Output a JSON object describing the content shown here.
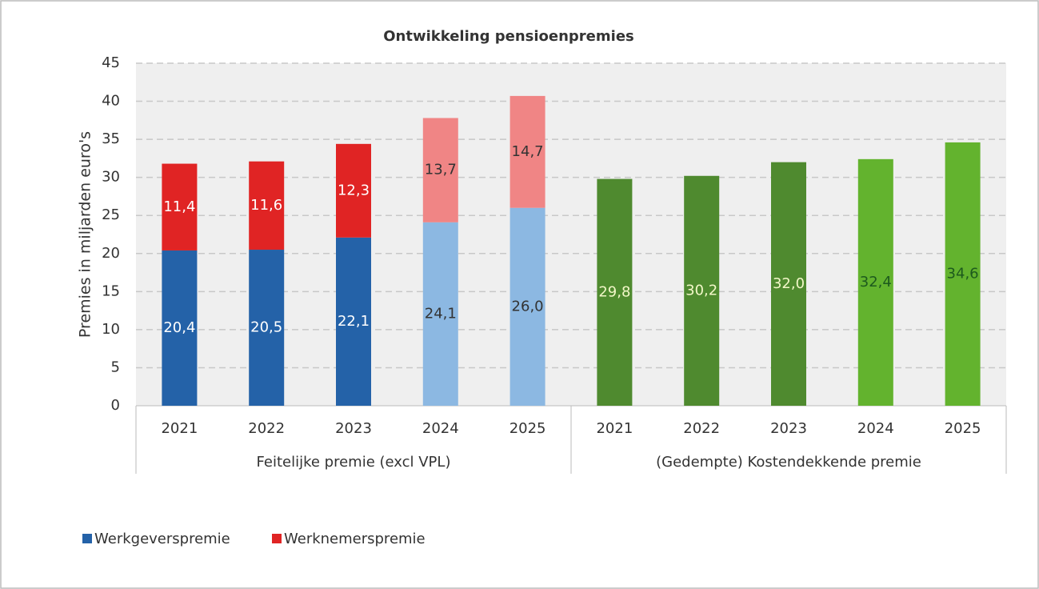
{
  "chart_data": {
    "type": "stacked-bar",
    "title": "Ontwikkeling pensioenpremies",
    "y_label": "Premies in miljarden euro's",
    "categories": [
      "2021",
      "2022",
      "2023",
      "2024",
      "2025",
      "2021",
      "2022",
      "2023",
      "2024",
      "2025"
    ],
    "groups": [
      {
        "label": "Feitelijke premie (excl VPL)",
        "size": 5
      },
      {
        "label": "(Gedempte) Kostendekkende premie",
        "size": 5
      }
    ],
    "series": [
      {
        "name": "Werkgeverspremie",
        "color": "#2462a8",
        "colors": [
          "#2462a8",
          "#2462a8",
          "#2462a8",
          "#8cb8e2",
          "#8cb8e2",
          null,
          null,
          null,
          null,
          null
        ],
        "label_colors": [
          "#ffffff",
          "#ffffff",
          "#ffffff",
          "#333333",
          "#333333",
          null,
          null,
          null,
          null,
          null
        ],
        "values": [
          20.4,
          20.5,
          22.1,
          24.1,
          26.0,
          null,
          null,
          null,
          null,
          null
        ],
        "value_labels": [
          "20,4",
          "20,5",
          "22,1",
          "24,1",
          "26,0",
          null,
          null,
          null,
          null,
          null
        ]
      },
      {
        "name": "Werknemerspremie",
        "color": "#e02424",
        "colors": [
          "#e02424",
          "#e02424",
          "#e02424",
          "#f08585",
          "#f08585",
          null,
          null,
          null,
          null,
          null
        ],
        "label_colors": [
          "#ffffff",
          "#ffffff",
          "#ffffff",
          "#333333",
          "#333333",
          null,
          null,
          null,
          null,
          null
        ],
        "values": [
          11.4,
          11.6,
          12.3,
          13.7,
          14.7,
          null,
          null,
          null,
          null,
          null
        ],
        "value_labels": [
          "11,4",
          "11,6",
          "12,3",
          "13,7",
          "14,7",
          null,
          null,
          null,
          null,
          null
        ]
      },
      {
        "color": "#4f8a2f",
        "colors": [
          null,
          null,
          null,
          null,
          null,
          "#4f8a2f",
          "#4f8a2f",
          "#4f8a2f",
          "#63b32e",
          "#63b32e"
        ],
        "label_colors": [
          null,
          null,
          null,
          null,
          null,
          "#f2f7c8",
          "#f2f7c8",
          "#f2f7c8",
          "#1d5a1d",
          "#1d5a1d"
        ],
        "values": [
          null,
          null,
          null,
          null,
          null,
          29.8,
          30.2,
          32.0,
          32.4,
          34.6
        ],
        "value_labels": [
          null,
          null,
          null,
          null,
          null,
          "29,8",
          "30,2",
          "32,0",
          "32,4",
          "34,6"
        ],
        "legend": false
      }
    ],
    "ylim": [
      0,
      45
    ],
    "yticks": [
      0,
      5,
      10,
      15,
      20,
      25,
      30,
      35,
      40,
      45
    ],
    "grid": true
  }
}
